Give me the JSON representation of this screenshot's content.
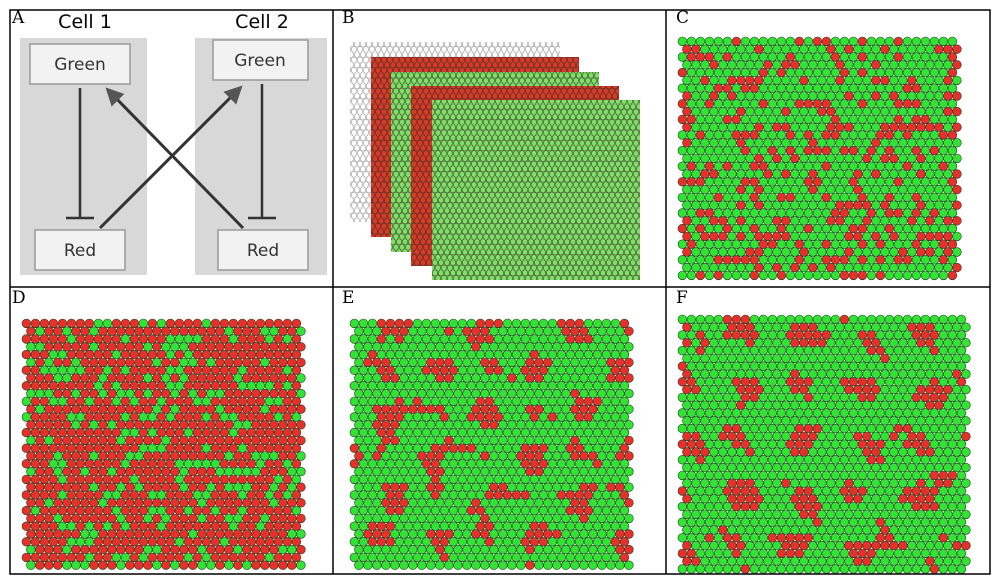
{
  "panels": [
    {
      "label": "A"
    },
    {
      "label": "B"
    },
    {
      "label": "C"
    },
    {
      "label": "D"
    },
    {
      "label": "E"
    },
    {
      "label": "F"
    }
  ],
  "diagram": {
    "cells": [
      {
        "title": "Cell 1",
        "top": "Green",
        "bottom": "Red"
      },
      {
        "title": "Cell 2",
        "top": "Green",
        "bottom": "Red"
      }
    ]
  }
}
